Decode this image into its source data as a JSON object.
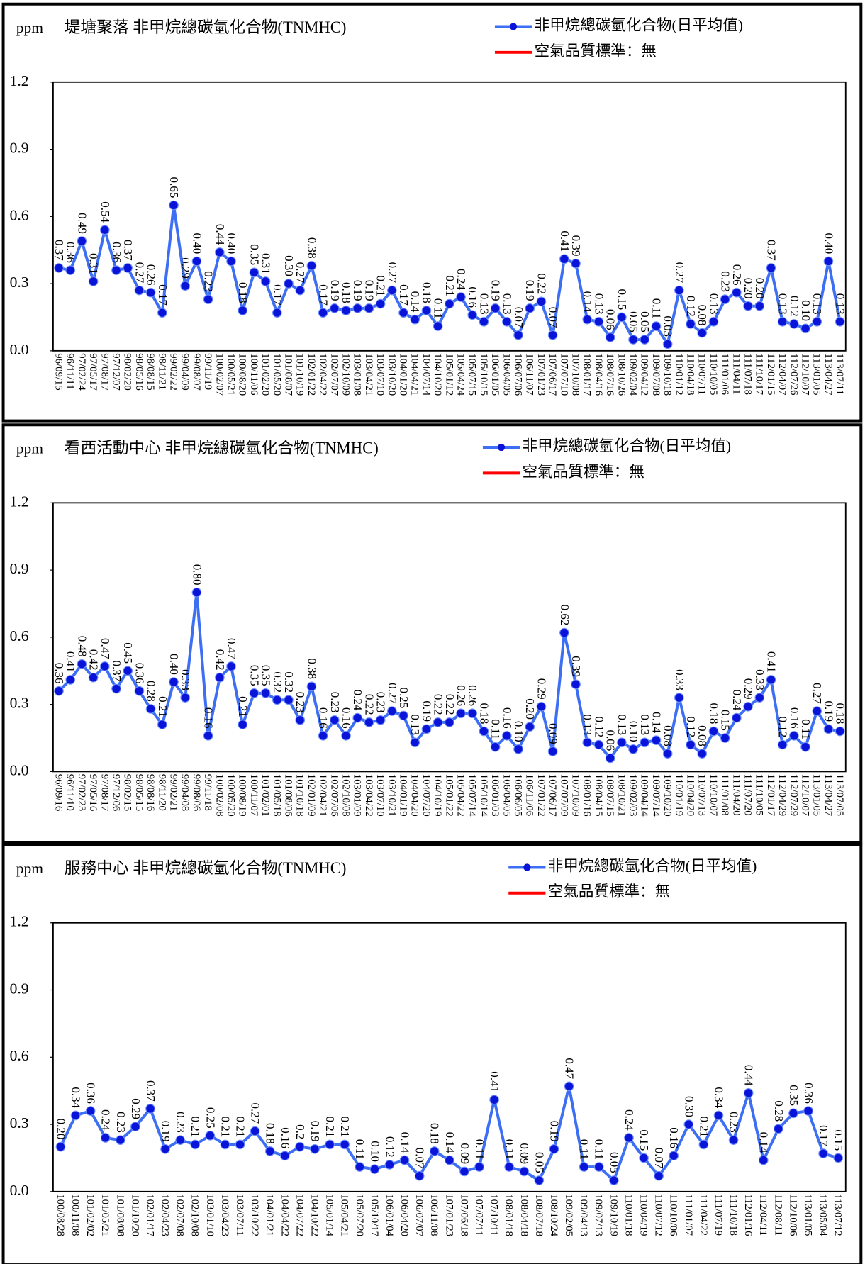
{
  "chart_data": [
    {
      "type": "line",
      "y_label": "ppm",
      "title": "堤塘聚落 非甲烷總碳氫化合物(TNMHC)",
      "x": [
        "96/09/15",
        "96/11/11",
        "97/02/24",
        "97/05/17",
        "97/08/17",
        "97/12/07",
        "98/02/20",
        "98/05/16",
        "98/08/15",
        "98/11/21",
        "99/02/22",
        "99/04/09",
        "99/08/07",
        "99/11/19",
        "100/02/07",
        "100/05/21",
        "100/08/20",
        "100/11/06",
        "101/02/20",
        "101/05/20",
        "101/08/07",
        "101/10/19",
        "102/01/22",
        "102/04/22",
        "102/07/07",
        "102/10/09",
        "103/01/08",
        "103/04/21",
        "103/07/10",
        "103/10/20",
        "104/01/20",
        "104/04/21",
        "104/07/14",
        "104/10/20",
        "105/01/12",
        "105/04/24",
        "105/07/15",
        "105/10/15",
        "106/01/05",
        "106/04/05",
        "106/07/06",
        "106/11/07",
        "107/01/23",
        "107/06/17",
        "107/07/10",
        "107/10/08",
        "108/01/17",
        "108/04/16",
        "108/07/16",
        "108/10/26",
        "109/02/04",
        "109/04/12",
        "109/07/08",
        "109/10/18",
        "110/01/12",
        "110/04/18",
        "110/07/11",
        "110/10/05",
        "111/01/06",
        "111/04/11",
        "111/07/18",
        "111/10/17",
        "112/01/15",
        "112/04/07",
        "112/07/26",
        "112/10/07",
        "113/01/05",
        "113/04/27",
        "113/07/11"
      ],
      "series": [
        {
          "name": "非甲烷總碳氫化合物(日平均值)",
          "color": "#3d6ff5",
          "marker_color": "#0a14d8",
          "values": [
            0.37,
            0.36,
            0.49,
            0.31,
            0.54,
            0.36,
            0.37,
            0.27,
            0.26,
            0.17,
            0.65,
            0.29,
            0.4,
            0.23,
            0.44,
            0.4,
            0.18,
            0.35,
            0.31,
            0.17,
            0.3,
            0.27,
            0.38,
            0.17,
            0.19,
            0.18,
            0.19,
            0.19,
            0.21,
            0.27,
            0.17,
            0.14,
            0.18,
            0.11,
            0.21,
            0.24,
            0.16,
            0.13,
            0.19,
            0.13,
            0.07,
            0.19,
            0.22,
            0.07,
            0.41,
            0.39,
            0.14,
            0.13,
            0.06,
            0.15,
            0.05,
            0.05,
            0.11,
            0.03,
            0.27,
            0.12,
            0.08,
            0.13,
            0.23,
            0.26,
            0.2,
            0.2,
            0.37,
            0.13,
            0.12,
            0.1,
            0.13,
            0.4,
            0.13
          ],
          "value_labels": [
            "0.37",
            "0.36",
            "0.49",
            "0.31",
            "0.54",
            "0.36",
            "0.37",
            "0.27",
            "0.26",
            "0.17",
            "0.65",
            "0.29",
            "0.40",
            "0.23",
            "0.44",
            "0.40",
            "0.18",
            "0.35",
            "0.31",
            "0.17",
            "0.30",
            "0.27",
            "0.38",
            "0.17",
            "0.19",
            "0.18",
            "0.19",
            "0.19",
            "0.21",
            "0.27",
            "0.17",
            "0.14",
            "0.18",
            "0.11",
            "0.21",
            "0.24",
            "0.16",
            "0.13",
            "0.19",
            "0.13",
            "0.07",
            "0.19",
            "0.22",
            "0.07",
            "0.41",
            "0.39",
            "0.14",
            "0.13",
            "0.06",
            "0.15",
            "0.05",
            "0.05",
            "0.11",
            "0.03",
            "0.27",
            "0.12",
            "0.08",
            "0.13",
            "0.23",
            "0.26",
            "0.20",
            "0.20",
            "0.37",
            "0.13",
            "0.12",
            "0.10",
            "0.13",
            "0.40",
            "0.13"
          ]
        }
      ],
      "standard": {
        "name": "空氣品質標準：無",
        "color": "#ff0000"
      },
      "ylim": [
        0,
        1.2
      ],
      "yticks": [
        {
          "value": 0,
          "label": "0.0"
        },
        {
          "value": 0.3,
          "label": "0.3"
        },
        {
          "value": 0.6,
          "label": "0.6"
        },
        {
          "value": 0.9,
          "label": "0.9"
        },
        {
          "value": 1.2,
          "label": "1.2"
        }
      ]
    },
    {
      "type": "line",
      "y_label": "ppm",
      "title": "看西活動中心  非甲烷總碳氫化合物(TNMHC)",
      "x": [
        "96/09/16",
        "96/11/10",
        "97/02/23",
        "97/05/16",
        "97/08/17",
        "97/12/06",
        "98/02/15",
        "98/05/15",
        "98/08/16",
        "98/11/20",
        "99/02/21",
        "99/04/08",
        "99/08/06",
        "99/11/18",
        "100/02/08",
        "100/05/20",
        "100/08/19",
        "100/11/07",
        "101/02/01",
        "101/05/18",
        "101/08/06",
        "101/10/18",
        "102/01/09",
        "102/04/21",
        "102/07/06",
        "102/10/08",
        "103/01/09",
        "103/04/22",
        "103/07/10",
        "103/10/21",
        "104/01/19",
        "104/04/20",
        "104/07/20",
        "104/10/19",
        "105/01/22",
        "105/04/22",
        "105/07/14",
        "105/10/14",
        "106/01/03",
        "106/04/05",
        "106/06/05",
        "106/11/06",
        "107/01/22",
        "107/06/17",
        "107/07/09",
        "107/10/09",
        "108/01/16",
        "108/04/15",
        "108/07/15",
        "108/10/21",
        "109/02/03",
        "109/04/14",
        "109/07/14",
        "109/10/20",
        "110/01/19",
        "110/04/20",
        "110/07/13",
        "110/10/07",
        "111/01/08",
        "111/04/20",
        "111/07/20",
        "111/10/05",
        "112/01/17",
        "112/04/29",
        "112/07/29",
        "112/10/07",
        "113/01/05",
        "113/04/27",
        "113/07/05"
      ],
      "series": [
        {
          "name": "非甲烷總碳氫化合物(日平均值)",
          "color": "#3d6ff5",
          "marker_color": "#0a14d8",
          "values": [
            0.36,
            0.41,
            0.48,
            0.42,
            0.47,
            0.37,
            0.45,
            0.36,
            0.28,
            0.21,
            0.4,
            0.33,
            0.8,
            0.16,
            0.42,
            0.47,
            0.21,
            0.35,
            0.35,
            0.32,
            0.32,
            0.23,
            0.38,
            0.16,
            0.23,
            0.16,
            0.24,
            0.22,
            0.23,
            0.27,
            0.25,
            0.13,
            0.19,
            0.22,
            0.22,
            0.26,
            0.26,
            0.18,
            0.11,
            0.16,
            0.1,
            0.2,
            0.29,
            0.09,
            0.62,
            0.39,
            0.13,
            0.12,
            0.06,
            0.13,
            0.1,
            0.13,
            0.14,
            0.08,
            0.33,
            0.12,
            0.08,
            0.18,
            0.15,
            0.24,
            0.29,
            0.33,
            0.41,
            0.12,
            0.16,
            0.11,
            0.27,
            0.19,
            0.18
          ],
          "value_labels": [
            "0.36",
            "0.41",
            "0.48",
            "0.42",
            "0.47",
            "0.37",
            "0.45",
            "0.36",
            "0.28",
            "0.21",
            "0.40",
            "0.33",
            "0.80",
            "0.16",
            "0.42",
            "0.47",
            "0.21",
            "0.35",
            "0.35",
            "0.32",
            "0.32",
            "0.23",
            "0.38",
            "0.16",
            "0.23",
            "0.16",
            "0.24",
            "0.22",
            "0.23",
            "0.27",
            "0.25",
            "0.13",
            "0.19",
            "0.22",
            "0.22",
            "0.26",
            "0.26",
            "0.18",
            "0.11",
            "0.16",
            "0.10",
            "0.20",
            "0.29",
            "0.09",
            "0.62",
            "0.39",
            "0.13",
            "0.12",
            "0.06",
            "0.13",
            "0.10",
            "0.13",
            "0.14",
            "0.08",
            "0.33",
            "0.12",
            "0.08",
            "0.18",
            "0.15",
            "0.24",
            "0.29",
            "0.33",
            "0.41",
            "0.12",
            "0.16",
            "0.11",
            "0.27",
            "0.19",
            "0.18"
          ]
        }
      ],
      "standard": {
        "name": "空氣品質標準：無",
        "color": "#ff0000"
      },
      "ylim": [
        0,
        1.2
      ],
      "yticks": [
        {
          "value": 0,
          "label": "0.0"
        },
        {
          "value": 0.3,
          "label": "0.3"
        },
        {
          "value": 0.6,
          "label": "0.6"
        },
        {
          "value": 0.9,
          "label": "0.9"
        },
        {
          "value": 1.2,
          "label": "1.2"
        }
      ]
    },
    {
      "type": "line",
      "y_label": "ppm",
      "title": "服務中心  非甲烷總碳氫化合物(TNMHC)",
      "x": [
        "100/08/28",
        "100/11/08",
        "101/02/02",
        "101/05/21",
        "101/08/08",
        "101/10/20",
        "102/01/17",
        "102/04/23",
        "102/07/08",
        "102/10/08",
        "103/01/10",
        "103/04/23",
        "103/07/11",
        "103/10/22",
        "104/01/21",
        "104/04/22",
        "104/07/22",
        "104/10/22",
        "105/01/14",
        "105/04/21",
        "105/07/20",
        "105/10/17",
        "106/01/04",
        "106/04/20",
        "106/07/07",
        "106/11/08",
        "107/01/23",
        "107/06/18",
        "107/07/11",
        "107/10/11",
        "108/01/18",
        "108/04/18",
        "108/07/18",
        "108/10/24",
        "109/02/05",
        "109/04/13",
        "109/07/13",
        "109/10/19",
        "110/01/18",
        "110/04/19",
        "110/07/12",
        "110/10/06",
        "111/01/07",
        "111/04/22",
        "111/07/19",
        "111/10/18",
        "112/01/16",
        "112/04/11",
        "112/08/11",
        "112/10/06",
        "113/01/05",
        "113/05/04",
        "113/07/12"
      ],
      "series": [
        {
          "name": "非甲烷總碳氫化合物(日平均值)",
          "color": "#3d6ff5",
          "marker_color": "#0a14d8",
          "values": [
            0.2,
            0.34,
            0.36,
            0.24,
            0.23,
            0.29,
            0.37,
            0.19,
            0.23,
            0.21,
            0.25,
            0.21,
            0.21,
            0.27,
            0.18,
            0.16,
            0.2,
            0.19,
            0.21,
            0.21,
            0.11,
            0.1,
            0.12,
            0.14,
            0.07,
            0.18,
            0.14,
            0.09,
            0.11,
            0.41,
            0.11,
            0.09,
            0.05,
            0.19,
            0.47,
            0.11,
            0.11,
            0.05,
            0.24,
            0.15,
            0.07,
            0.16,
            0.3,
            0.21,
            0.34,
            0.23,
            0.44,
            0.14,
            0.28,
            0.35,
            0.36,
            0.17,
            0.15
          ],
          "value_labels": [
            "0.20",
            "0.34",
            "0.36",
            "0.24",
            "0.23",
            "0.29",
            "0.37",
            "0.19",
            "0.23",
            "0.21",
            "0.25",
            "0.21",
            "0.21",
            "0.27",
            "0.18",
            "0.16",
            "0.2",
            "0.19",
            "0.21",
            "0.21",
            "0.11",
            "0.10",
            "0.12",
            "0.14",
            "0.07",
            "0.18",
            "0.14",
            "0.09",
            "0.11",
            "0.41",
            "0.11",
            "0.09",
            "0.05",
            "0.19",
            "0.47",
            "0.11",
            "0.11",
            "0.05",
            "0.24",
            "0.15",
            "0.07",
            "0.16",
            "0.30",
            "0.21",
            "0.34",
            "0.23",
            "0.44",
            "0.14",
            "0.28",
            "0.35",
            "0.36",
            "0.17",
            "0.15"
          ]
        }
      ],
      "standard": {
        "name": "空氣品質標準：無",
        "color": "#ff0000"
      },
      "ylim": [
        0,
        1.2
      ],
      "yticks": [
        {
          "value": 0,
          "label": "0.0"
        },
        {
          "value": 0.3,
          "label": "0.3"
        },
        {
          "value": 0.6,
          "label": "0.6"
        },
        {
          "value": 0.9,
          "label": "0.9"
        },
        {
          "value": 1.2,
          "label": "1.2"
        }
      ]
    }
  ]
}
